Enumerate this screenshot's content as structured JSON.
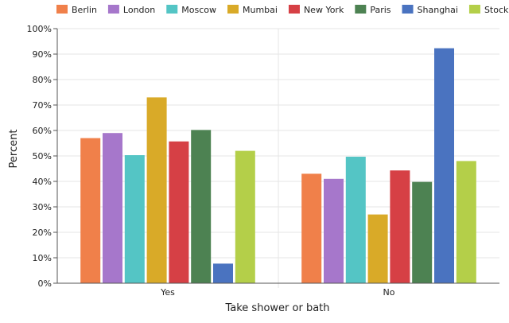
{
  "chart_data": {
    "type": "bar",
    "title": "",
    "xlabel": "Take shower or bath",
    "ylabel": "Percent",
    "ylim": [
      0,
      100
    ],
    "yticks": [
      "0%",
      "10%",
      "20%",
      "30%",
      "40%",
      "50%",
      "60%",
      "70%",
      "80%",
      "90%",
      "100%"
    ],
    "categories": [
      "Yes",
      "No"
    ],
    "grid": true,
    "legend_position": "top",
    "series": [
      {
        "name": "Berlin",
        "color": "#f0804a",
        "values": [
          57,
          43
        ]
      },
      {
        "name": "London",
        "color": "#a677cb",
        "values": [
          59,
          41
        ]
      },
      {
        "name": "Moscow",
        "color": "#54c5c5",
        "values": [
          50.3,
          49.7
        ]
      },
      {
        "name": "Mumbai",
        "color": "#d9aa28",
        "values": [
          73,
          27
        ]
      },
      {
        "name": "New York",
        "color": "#d64045",
        "values": [
          55.7,
          44.3
        ]
      },
      {
        "name": "Paris",
        "color": "#4d8252",
        "values": [
          60.2,
          39.8
        ]
      },
      {
        "name": "Shanghai",
        "color": "#4a73c0",
        "values": [
          7.7,
          92.3
        ]
      },
      {
        "name": "Stockholm",
        "color": "#b4cf49",
        "values": [
          52,
          48
        ]
      }
    ]
  }
}
